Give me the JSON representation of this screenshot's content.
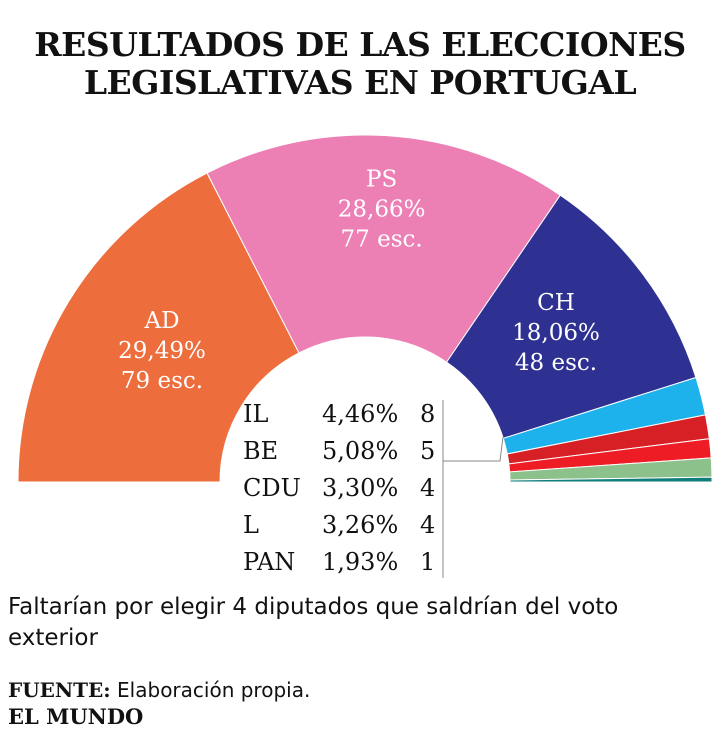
{
  "title_line1": "RESULTADOS DE LAS ELECCIONES",
  "title_line2": "LEGISLATIVAS EN PORTUGAL",
  "chart_data": {
    "type": "pie",
    "shape": "parliament-half-donut",
    "series": [
      {
        "name": "AD",
        "percent": "29,49%",
        "seats": 79,
        "seats_label": "79 esc.",
        "color": "#EE6D3D"
      },
      {
        "name": "PS",
        "percent": "28,66%",
        "seats": 77,
        "seats_label": "77 esc.",
        "color": "#EC80B5"
      },
      {
        "name": "CH",
        "percent": "18,06%",
        "seats": 48,
        "seats_label": "48 esc.",
        "color": "#2E3192"
      },
      {
        "name": "IL",
        "percent": "4,46%",
        "seats": 8,
        "color": "#1EB2EC"
      },
      {
        "name": "BE",
        "percent": "5,08%",
        "seats": 5,
        "color": "#D71F26"
      },
      {
        "name": "CDU",
        "percent": "3,30%",
        "seats": 4,
        "color": "#EE1C25"
      },
      {
        "name": "L",
        "percent": "3,26%",
        "seats": 4,
        "color": "#8DC18B"
      },
      {
        "name": "PAN",
        "percent": "1,93%",
        "seats": 1,
        "color": "#0F7E7B"
      }
    ]
  },
  "footnote": "Faltarían por elegir 4 diputados que saldrían del voto exterior",
  "source_label": "FUENTE:",
  "source_text": "Elaboración propia.",
  "brand": "EL MUNDO"
}
